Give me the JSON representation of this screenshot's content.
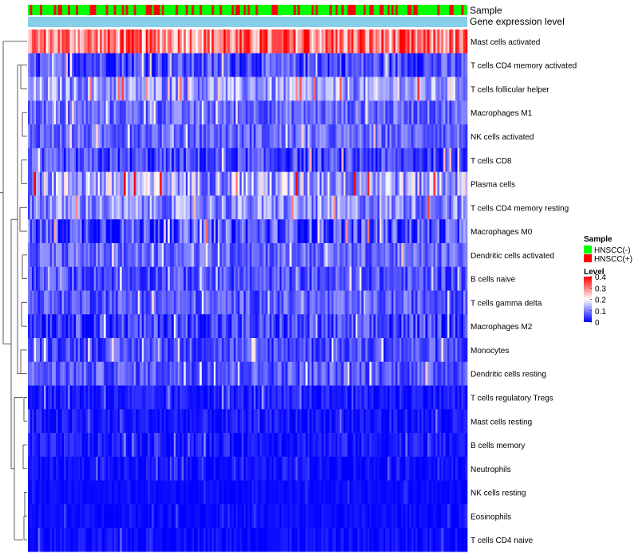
{
  "chart_data": {
    "type": "heatmap",
    "annotation_tracks": [
      "Sample",
      "Gene expression level"
    ],
    "annotation_colors": {
      "sample_track_base": "#00ff00",
      "expression_track": "#87ceeb"
    },
    "rows": [
      "Mast cells activated",
      "T cells CD4 memory activated",
      "T cells follicular helper",
      "Macrophages M1",
      "NK cells activated",
      "T cells CD8",
      "Plasma cells",
      "T cells CD4 memory resting",
      "Macrophages M0",
      "Dendritic cells activated",
      "B cells naive",
      "T cells gamma delta",
      "Macrophages M2",
      "Monocytes",
      "Dendritic cells resting",
      "T cells regulatory  Tregs",
      "Mast cells resting",
      "B cells memory",
      "Neutrophils",
      "NK cells resting",
      "Eosinophils",
      "T cells CD4 naive"
    ],
    "row_mean_level": [
      0.3,
      0.06,
      0.12,
      0.08,
      0.08,
      0.05,
      0.14,
      0.11,
      0.06,
      0.08,
      0.06,
      0.07,
      0.05,
      0.06,
      0.07,
      0.02,
      0.015,
      0.02,
      0.012,
      0.008,
      0.008,
      0.01
    ],
    "row_spread": [
      0.1,
      0.06,
      0.07,
      0.05,
      0.05,
      0.06,
      0.1,
      0.07,
      0.08,
      0.05,
      0.05,
      0.05,
      0.06,
      0.05,
      0.05,
      0.03,
      0.03,
      0.03,
      0.02,
      0.01,
      0.015,
      0.02
    ],
    "n_samples": 220,
    "level_range": [
      0,
      0.4
    ],
    "color_scale": {
      "low": "#0000ff",
      "mid": "#ffffff",
      "high": "#ff0000"
    },
    "legend": {
      "sample_title": "Sample",
      "sample_items": [
        {
          "label": "HNSCC(-)",
          "color": "#00ff00"
        },
        {
          "label": "HNSCC(+)",
          "color": "#ff0000"
        }
      ],
      "level_title": "Level",
      "level_ticks": [
        "0.4",
        "0.3",
        "0.2",
        "0.1",
        "0"
      ],
      "level_tick_values": [
        0.4,
        0.3,
        0.2,
        0.1,
        0
      ]
    }
  }
}
